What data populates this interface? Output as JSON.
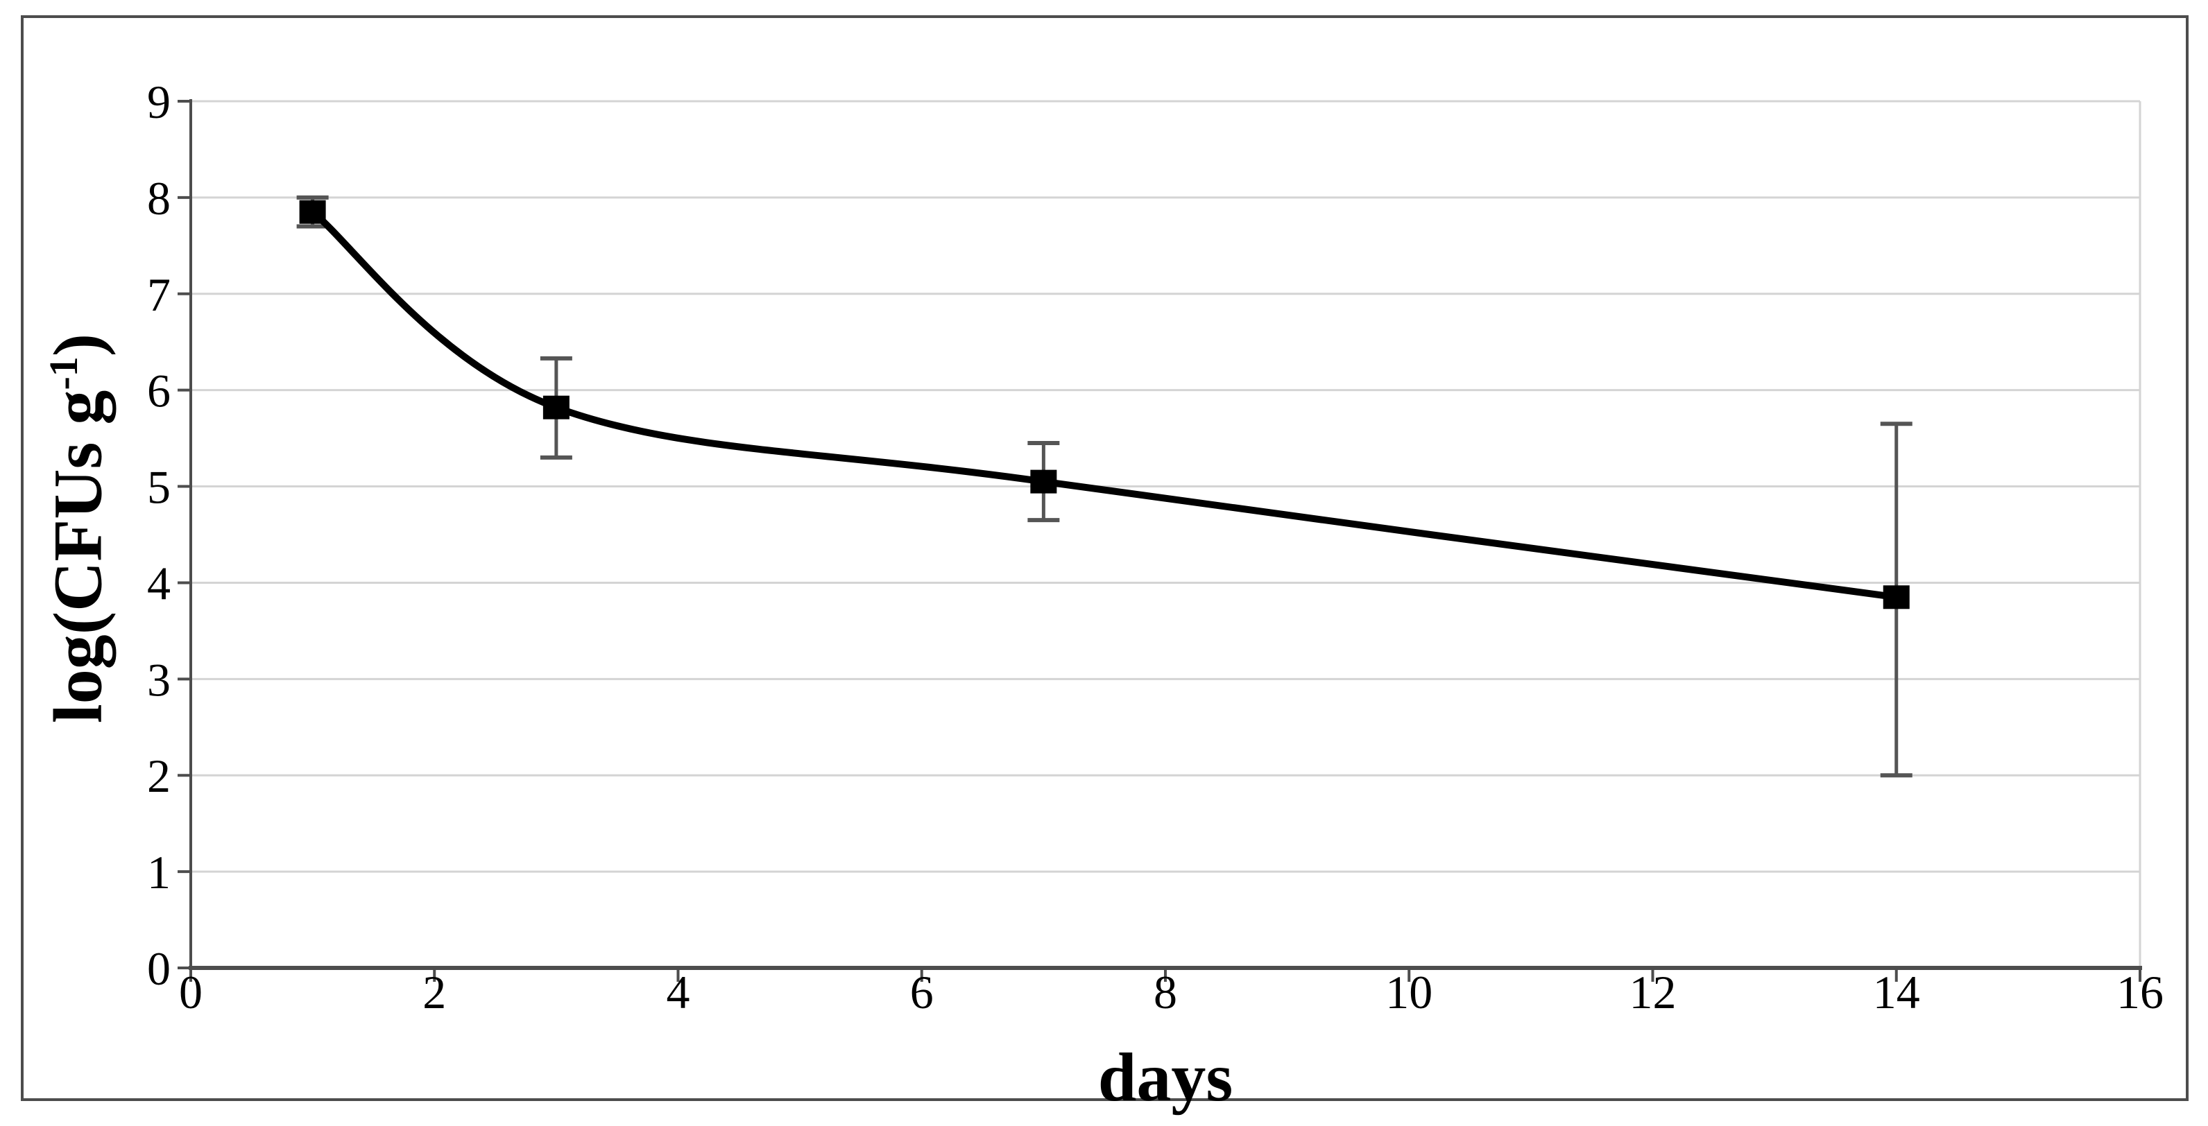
{
  "figure": {
    "background": "#ffffff",
    "border_color": "#4d4d4d"
  },
  "chart_data": {
    "type": "line",
    "title": "",
    "xlabel": "days",
    "ylabel": "log(CFUs g⁻¹)",
    "ylabel_parts": {
      "pre": "log(CFUs g",
      "sup": "-1",
      "post": ")"
    },
    "x": [
      1,
      3,
      7,
      14
    ],
    "y": [
      7.85,
      5.82,
      5.05,
      3.85
    ],
    "error_high": [
      8.0,
      6.33,
      5.45,
      5.65
    ],
    "error_low": [
      7.7,
      5.3,
      4.65,
      2.0
    ],
    "xlim": [
      0,
      16
    ],
    "ylim": [
      0,
      9
    ],
    "x_ticks": [
      0,
      2,
      4,
      6,
      8,
      10,
      12,
      14,
      16
    ],
    "y_ticks": [
      0,
      1,
      2,
      3,
      4,
      5,
      6,
      7,
      8,
      9
    ],
    "grid": "horizontal-only",
    "legend": "none",
    "marker": "filled-square",
    "line_smooth": true,
    "colors": {
      "series": "#000000",
      "marker": "#000000",
      "error_bar": "#555555",
      "gridline": "#d4d4d4",
      "plot_right_border": "#d4d4d4",
      "axis": "#4d4d4d",
      "tick_label": "#000000"
    }
  }
}
